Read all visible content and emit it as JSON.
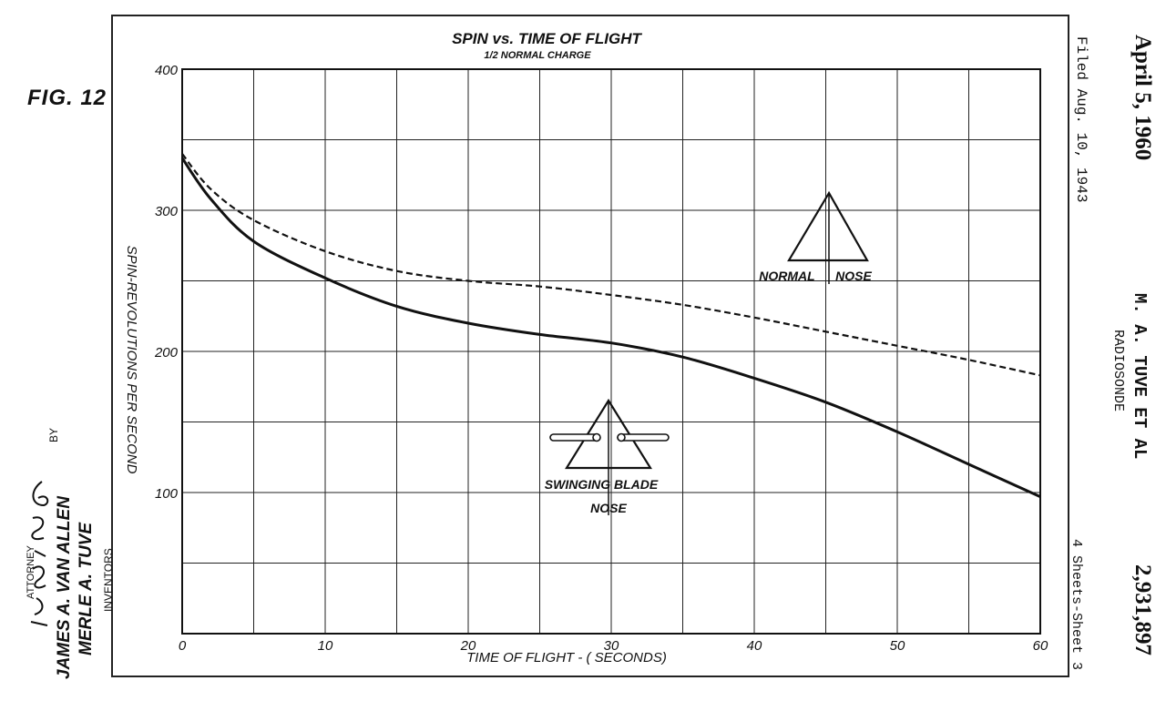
{
  "figure_label": "FIG. 12",
  "right_margin": {
    "date": "April 5, 1960",
    "filed": "Filed Aug. 10, 1943",
    "inventor_header": "M. A. TUVE ET AL",
    "subject": "RADIOSONDE",
    "sheets": "4 Sheets-Sheet 3",
    "patent_number": "2,931,897"
  },
  "left_margin": {
    "by": "BY",
    "inventors_heading": "INVENTORS",
    "inventor_1": "MERLE A. TUVE",
    "inventor_2": "JAMES A. VAN ALLEN",
    "attorney": "ATTORNEY"
  },
  "annotations": {
    "normal_nose": [
      "NORMAL",
      "NOSE"
    ],
    "swinging_blade": [
      "SWINGING BLADE",
      "NOSE"
    ]
  },
  "chart_data": {
    "type": "line",
    "title": "SPIN vs. TIME OF FLIGHT",
    "subtitle": "1/2 NORMAL CHARGE",
    "xlabel": "TIME OF FLIGHT - ( SECONDS)",
    "ylabel": "SPIN-REVOLUTIONS PER SECOND",
    "xlim": [
      0,
      60
    ],
    "ylim": [
      0,
      400
    ],
    "x_ticks": [
      "0",
      "10",
      "20",
      "30",
      "40",
      "50",
      "60"
    ],
    "y_ticks": [
      "100",
      "200",
      "300",
      "400"
    ],
    "grid": true,
    "series": [
      {
        "style": "dashed",
        "color": "#111111",
        "x": [
          0,
          2,
          5,
          10,
          15,
          20,
          25,
          30,
          35,
          40,
          45,
          50,
          55,
          60
        ],
        "y": [
          340,
          315,
          293,
          271,
          257,
          250,
          246,
          240,
          233,
          224,
          214,
          204,
          194,
          183
        ]
      },
      {
        "style": "solid",
        "color": "#111111",
        "x": [
          0,
          2,
          5,
          10,
          15,
          20,
          25,
          30,
          35,
          40,
          45,
          50,
          55,
          60
        ],
        "y": [
          337,
          308,
          278,
          252,
          232,
          220,
          212,
          206,
          196,
          181,
          164,
          143,
          120,
          97
        ]
      }
    ]
  }
}
